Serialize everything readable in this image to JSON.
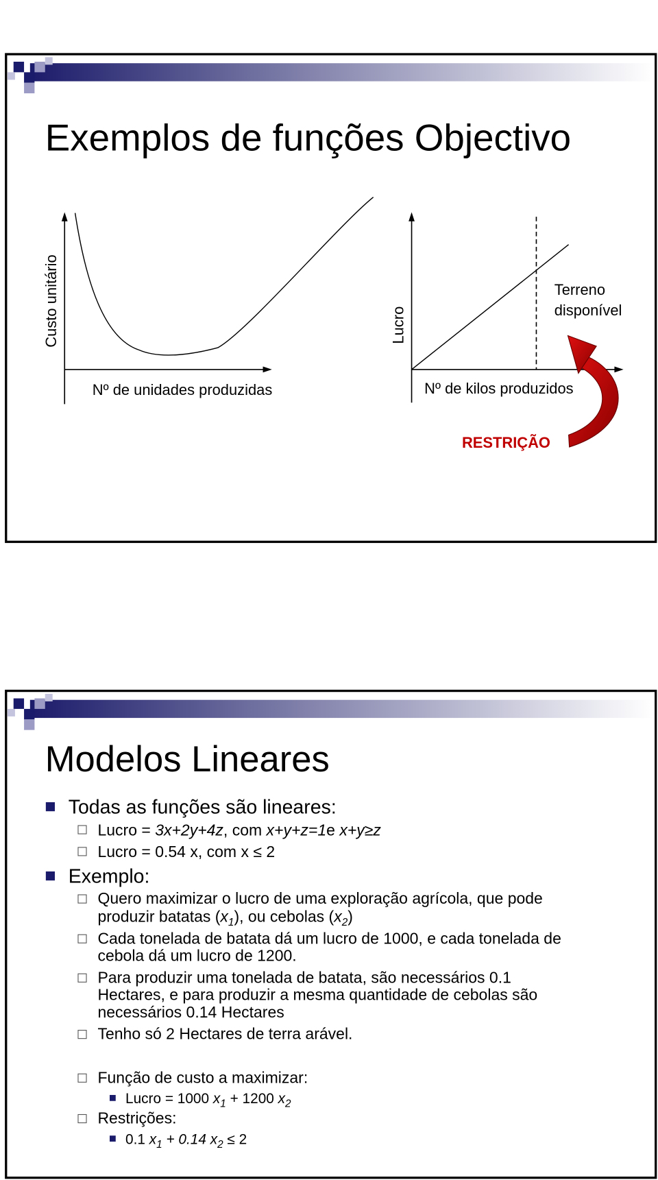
{
  "slides": [
    {
      "title": "Exemplos de funções Objectivo",
      "diagram": {
        "left": {
          "y_label": "Custo unitário",
          "x_label": "Nº de unidades produzidas"
        },
        "right": {
          "y_label": "Lucro",
          "x_label": "Nº de kilos produzidos",
          "limit_label": [
            "Terreno",
            "disponível"
          ],
          "arrow_label": "RESTRIÇÃO"
        }
      }
    },
    {
      "title": "Modelos Lineares",
      "bullets": [
        {
          "text": "Todas as funções são lineares:",
          "sub": [
            {
              "lines": [
                [
                  "Lucro = ",
                  "3x+2y+4z",
                  ", com ",
                  "x+y+z=1",
                  "e ",
                  "x+y≥z"
                ]
              ]
            },
            {
              "lines": [
                [
                  "Lucro = 0.54 x, com x ≤ 2"
                ]
              ]
            }
          ]
        },
        {
          "text": "Exemplo:",
          "sub": [
            {
              "lines": [
                [
                  "Quero maximizar o lucro de uma exploração agrícola, que pode"
                ],
                [
                  "produzir batatas (",
                  "x",
                  "1",
                  "), ou cebolas (",
                  "x",
                  "2",
                  ")"
                ]
              ]
            },
            {
              "lines": [
                [
                  "Cada tonelada de batata dá um lucro de 1000, e cada tonelada de"
                ],
                [
                  "cebola dá um lucro de 1200."
                ]
              ]
            },
            {
              "lines": [
                [
                  "Para produzir uma tonelada de batata, são necessários 0.1"
                ],
                [
                  "Hectares, e para produzir a mesma quantidade de cebolas são"
                ],
                [
                  "necessários 0.14 Hectares"
                ]
              ]
            },
            {
              "lines": [
                [
                  "Tenho só 2 Hectares de terra arável."
                ]
              ]
            },
            {
              "lines": [
                [
                  "Função de custo a maximizar:"
                ]
              ],
              "sub": [
                [
                  "Lucro = 1000 ",
                  "x",
                  "1",
                  " + 1200 ",
                  "x",
                  "2"
                ]
              ]
            },
            {
              "lines": [
                [
                  "Restrições:"
                ]
              ],
              "sub": [
                [
                  "0.1 ",
                  "x",
                  "1",
                  " + ",
                  "0.14 ",
                  "x",
                  "2",
                  " ≤ 2"
                ]
              ]
            }
          ]
        }
      ]
    }
  ]
}
